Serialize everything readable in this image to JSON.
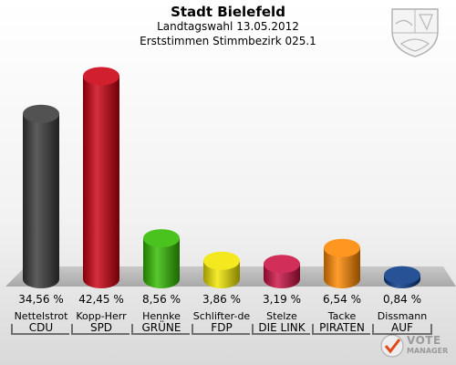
{
  "chart_data": {
    "type": "bar",
    "title": "Stadt Bielefeld",
    "subtitle1": "Landtagswahl 13.05.2012",
    "subtitle2": "Erststimmen Stimmbezirk 025.1",
    "unit": "%",
    "ylim": [
      0,
      45
    ],
    "categories": [
      {
        "candidate": "Nettelstrot",
        "party": "CDU",
        "value": 34.56,
        "label": "34,56 %",
        "color": "#3a3a3a"
      },
      {
        "candidate": "Kopp-Herr",
        "party": "SPD",
        "value": 42.45,
        "label": "42,45 %",
        "color": "#cc0011"
      },
      {
        "candidate": "Hennke",
        "party": "GRÜNE",
        "value": 8.56,
        "label": "8,56 %",
        "color": "#33bb00"
      },
      {
        "candidate": "Schlifter-de",
        "party": "FDP",
        "value": 3.86,
        "label": "3,86 %",
        "color": "#f2e600"
      },
      {
        "candidate": "Stelze",
        "party": "DIE LINK",
        "value": 3.19,
        "label": "3,19 %",
        "color": "#cc1144"
      },
      {
        "candidate": "Tacke",
        "party": "PIRATEN",
        "value": 6.54,
        "label": "6,54 %",
        "color": "#ff8800"
      },
      {
        "candidate": "Dissmann",
        "party": "AUF",
        "value": 0.84,
        "label": "0,84 %",
        "color": "#0a3a88"
      }
    ]
  },
  "logo": {
    "line1": "VOTE",
    "line2": "MANAGER",
    "icon": "vote-manager-check-icon"
  },
  "crest": {
    "icon": "nrw-coat-of-arms-icon"
  }
}
